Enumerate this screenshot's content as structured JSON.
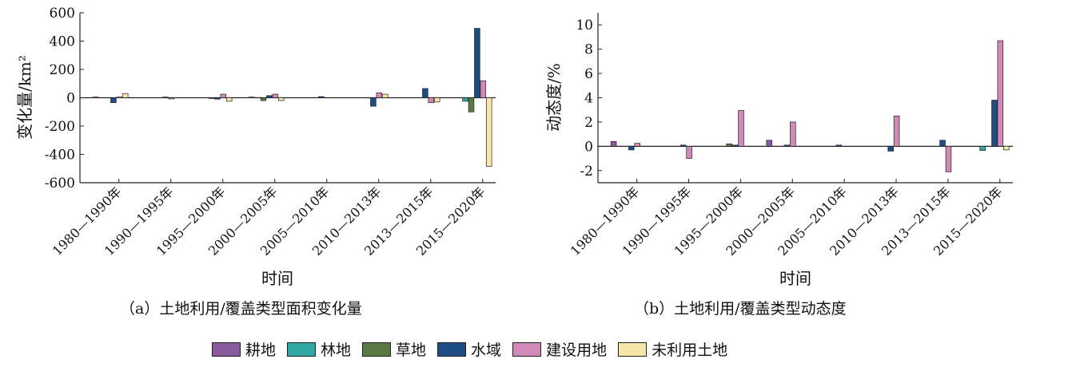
{
  "chart_data": [
    {
      "type": "bar",
      "id": "a",
      "caption": "（a）土地利用/覆盖类型面积变化量",
      "xlabel": "时间",
      "ylabel": "变化量/km²",
      "ylim": [
        -600,
        600
      ],
      "yticks": [
        -600,
        -400,
        -200,
        0,
        200,
        400,
        600
      ],
      "categories": [
        "1980—1990年",
        "1990—1995年",
        "1995—2000年",
        "2000—2005年",
        "2005—2010年",
        "2010—2013年",
        "2013—2015年",
        "2015—2020年"
      ],
      "series": [
        {
          "name": "耕地",
          "values": [
            5,
            0,
            0,
            5,
            0,
            0,
            0,
            0
          ]
        },
        {
          "name": "林地",
          "values": [
            0,
            0,
            0,
            0,
            0,
            0,
            0,
            -25
          ]
        },
        {
          "name": "草地",
          "values": [
            0,
            0,
            -5,
            -20,
            0,
            0,
            0,
            -100
          ]
        },
        {
          "name": "水域",
          "values": [
            -35,
            5,
            -10,
            15,
            8,
            -60,
            65,
            490
          ]
        },
        {
          "name": "建设用地",
          "values": [
            5,
            -8,
            25,
            25,
            0,
            35,
            -35,
            120
          ]
        },
        {
          "name": "未利用土地",
          "values": [
            30,
            0,
            -25,
            -20,
            0,
            25,
            -30,
            -485
          ]
        }
      ]
    },
    {
      "type": "bar",
      "id": "b",
      "caption": "（b）土地利用/覆盖类型动态度",
      "xlabel": "时间",
      "ylabel": "动态度/%",
      "ylim": [
        -3,
        11
      ],
      "yticks": [
        -2,
        0,
        2,
        4,
        6,
        8,
        10
      ],
      "categories": [
        "1980—1990年",
        "1990—1995年",
        "1995—2000年",
        "2000—2005年",
        "2005—2010年",
        "2010—2013年",
        "2013—2015年",
        "2015—2020年"
      ],
      "series": [
        {
          "name": "耕地",
          "values": [
            0.4,
            0,
            0,
            0.5,
            0,
            0,
            0,
            0
          ]
        },
        {
          "name": "林地",
          "values": [
            0,
            0,
            0,
            0,
            0,
            0,
            0,
            -0.35
          ]
        },
        {
          "name": "草地",
          "values": [
            0,
            0,
            0.2,
            0,
            0,
            0,
            0,
            0
          ]
        },
        {
          "name": "水域",
          "values": [
            -0.3,
            0.1,
            0.1,
            0.1,
            0.1,
            -0.4,
            0.5,
            3.8
          ]
        },
        {
          "name": "建设用地",
          "values": [
            0.25,
            -1.0,
            2.95,
            2.0,
            0,
            2.5,
            -2.1,
            8.7
          ]
        },
        {
          "name": "未利用土地",
          "values": [
            0,
            0,
            0,
            0,
            0,
            0,
            0,
            -0.3
          ]
        }
      ]
    }
  ],
  "legend": [
    {
      "name": "耕地",
      "color": "#8a5a9e"
    },
    {
      "name": "林地",
      "color": "#2fa7a2"
    },
    {
      "name": "草地",
      "color": "#5a7a44"
    },
    {
      "name": "水域",
      "color": "#1d4d82"
    },
    {
      "name": "建设用地",
      "color": "#d18ab8"
    },
    {
      "name": "未利用土地",
      "color": "#f6e7a8"
    }
  ]
}
